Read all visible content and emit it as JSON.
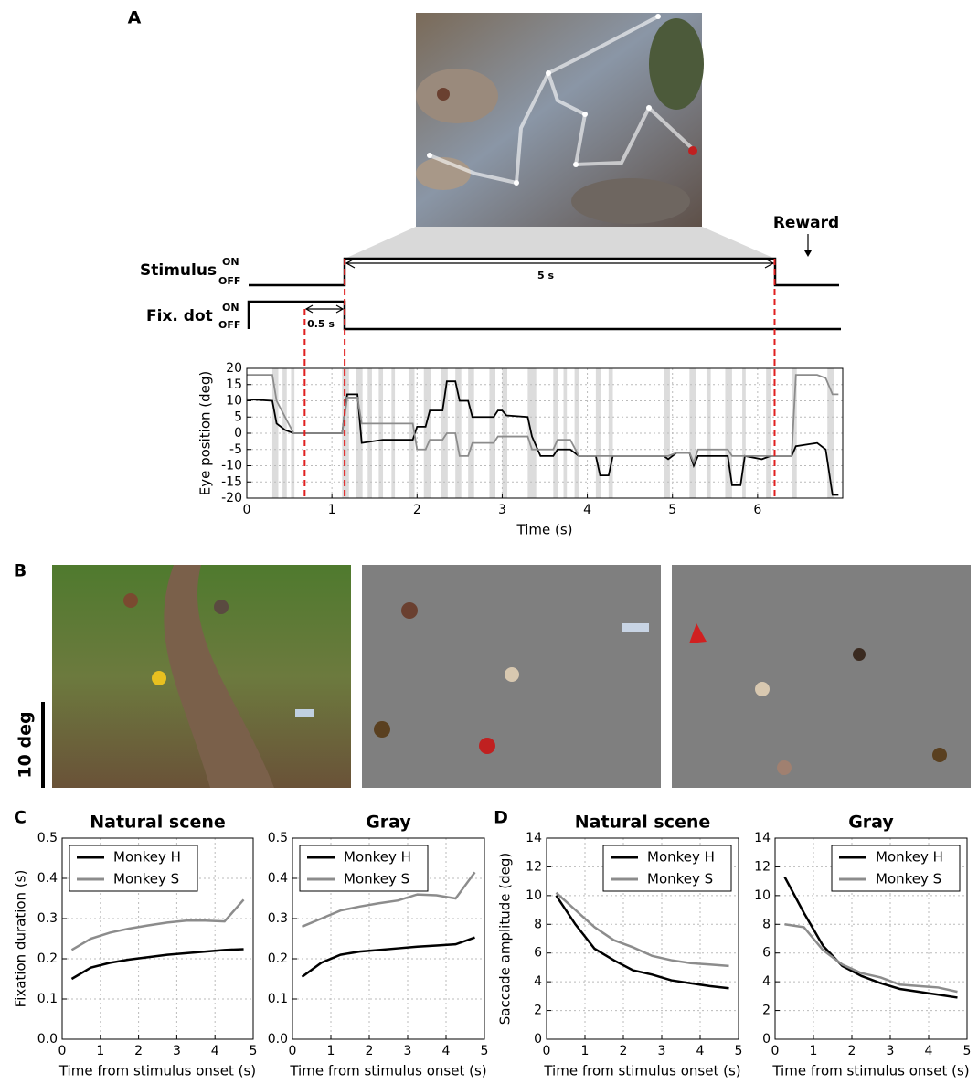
{
  "panel_labels": [
    "A",
    "B",
    "C",
    "D"
  ],
  "timing": {
    "stimulus": "Stimulus",
    "fix_dot": "Fix. dot",
    "on": "ON",
    "off": "OFF",
    "duration": "5 s",
    "delay": "0.5 s",
    "reward": "Reward"
  },
  "scale_bar": "10 deg",
  "chart_data": [
    {
      "type": "line",
      "xlabel": "Time (s)",
      "ylabel": "Eye position (deg)",
      "x": [
        0,
        0.3,
        0.35,
        0.45,
        0.55,
        1.12,
        1.18,
        1.3,
        1.35,
        1.6,
        1.95,
        2.0,
        2.1,
        2.15,
        2.3,
        2.35,
        2.45,
        2.5,
        2.6,
        2.65,
        2.9,
        2.95,
        3.0,
        3.05,
        3.3,
        3.35,
        3.45,
        3.6,
        3.65,
        3.8,
        3.9,
        4.1,
        4.15,
        4.25,
        4.3,
        4.9,
        4.95,
        5.05,
        5.2,
        5.25,
        5.3,
        5.65,
        5.7,
        5.8,
        5.85,
        6.05,
        6.15,
        6.4,
        6.45,
        6.7,
        6.8,
        6.88,
        6.95
      ],
      "series": [
        {
          "color": "#000000",
          "values": [
            10.5,
            10,
            3,
            1,
            0,
            0,
            12,
            12,
            -3,
            -2,
            -2,
            2,
            2,
            7,
            7,
            16,
            16,
            10,
            10,
            5,
            5,
            7,
            7,
            5.5,
            5,
            -1,
            -7,
            -7,
            -5,
            -5,
            -7,
            -7,
            -13,
            -13,
            -7,
            -7,
            -8,
            -6,
            -6,
            -10,
            -7,
            -7,
            -16,
            -16,
            -7,
            -8,
            -7,
            -7,
            -4,
            -3,
            -5,
            -19,
            -19
          ]
        },
        {
          "color": "#8c8c8c",
          "values": [
            18,
            18,
            10,
            5,
            0,
            0,
            11,
            11,
            3,
            3,
            3,
            -5,
            -5,
            -2,
            -2,
            0,
            0,
            -7,
            -7,
            -3,
            -3,
            -1,
            -1,
            -1,
            -1,
            -5,
            -5,
            -5,
            -2,
            -2,
            -7,
            -7,
            -7,
            -7,
            -7,
            -7,
            -7,
            -6,
            -6,
            -9,
            -5,
            -5,
            -7,
            -7,
            -7,
            -7,
            -7,
            -7,
            18,
            18,
            17,
            12,
            12
          ]
        }
      ],
      "xlim": [
        0,
        7
      ],
      "ylim": [
        -20,
        20
      ],
      "xticks": [
        0,
        1,
        2,
        3,
        4,
        5,
        6
      ],
      "yticks": [
        -20,
        -15,
        -10,
        -5,
        0,
        5,
        10,
        15,
        20
      ],
      "grid": true,
      "markers": [
        0.68,
        1.15,
        6.2
      ],
      "marker_color": "#e02020",
      "saccades": [
        [
          0.3,
          0.37
        ],
        [
          0.42,
          0.47
        ],
        [
          0.52,
          0.56
        ],
        [
          1.12,
          1.2
        ],
        [
          1.28,
          1.36
        ],
        [
          1.42,
          1.47
        ],
        [
          1.55,
          1.6
        ],
        [
          1.7,
          1.74
        ],
        [
          1.9,
          1.97
        ],
        [
          2.08,
          2.16
        ],
        [
          2.28,
          2.36
        ],
        [
          2.45,
          2.52
        ],
        [
          2.6,
          2.67
        ],
        [
          2.85,
          2.92
        ],
        [
          3.0,
          3.06
        ],
        [
          3.3,
          3.4
        ],
        [
          3.6,
          3.66
        ],
        [
          3.72,
          3.76
        ],
        [
          3.85,
          3.9
        ],
        [
          4.1,
          4.16
        ],
        [
          4.25,
          4.3
        ],
        [
          4.9,
          4.97
        ],
        [
          5.2,
          5.28
        ],
        [
          5.4,
          5.45
        ],
        [
          5.62,
          5.7
        ],
        [
          5.82,
          5.86
        ],
        [
          6.1,
          6.16
        ],
        [
          6.4,
          6.46
        ],
        [
          6.82,
          6.9
        ]
      ]
    },
    {
      "type": "line",
      "title": "Natural scene",
      "xlabel": "Time from stimulus onset (s)",
      "ylabel": "Fixation duration (s)",
      "x": [
        0.25,
        0.75,
        1.25,
        1.75,
        2.25,
        2.75,
        3.25,
        3.75,
        4.25,
        4.75
      ],
      "series": [
        {
          "name": "Monkey H",
          "color": "#000000",
          "values": [
            0.15,
            0.178,
            0.19,
            0.198,
            0.204,
            0.21,
            0.214,
            0.218,
            0.222,
            0.224
          ]
        },
        {
          "name": "Monkey S",
          "color": "#8c8c8c",
          "values": [
            0.222,
            0.25,
            0.265,
            0.275,
            0.283,
            0.29,
            0.295,
            0.295,
            0.293,
            0.347
          ]
        }
      ],
      "xlim": [
        0,
        5
      ],
      "ylim": [
        0,
        0.5
      ],
      "xticks": [
        0,
        1,
        2,
        3,
        4,
        5
      ],
      "yticks": [
        {
          "value": 0,
          "label": "0.0"
        },
        0.1,
        0.2,
        0.3,
        0.4,
        0.5
      ],
      "grid": true,
      "legend": "upper left"
    },
    {
      "type": "line",
      "title": "Gray",
      "xlabel": "Time from stimulus onset (s)",
      "x": [
        0.25,
        0.75,
        1.25,
        1.75,
        2.25,
        2.75,
        3.25,
        3.75,
        4.25,
        4.75
      ],
      "series": [
        {
          "name": "Monkey H",
          "color": "#000000",
          "values": [
            0.155,
            0.19,
            0.21,
            0.218,
            0.222,
            0.226,
            0.23,
            0.233,
            0.236,
            0.253
          ]
        },
        {
          "name": "Monkey S",
          "color": "#8c8c8c",
          "values": [
            0.28,
            0.3,
            0.32,
            0.33,
            0.338,
            0.345,
            0.36,
            0.358,
            0.35,
            0.415
          ]
        }
      ],
      "xlim": [
        0,
        5
      ],
      "ylim": [
        0,
        0.5
      ],
      "xticks": [
        0,
        1,
        2,
        3,
        4,
        5
      ],
      "yticks": [
        {
          "value": 0,
          "label": "0.0"
        },
        0.1,
        0.2,
        0.3,
        0.4,
        0.5
      ],
      "grid": true,
      "legend": "upper left"
    },
    {
      "type": "line",
      "title": "Natural scene",
      "xlabel": "Time from stimulus onset (s)",
      "ylabel": "Saccade amplitude (deg)",
      "x": [
        0.25,
        0.75,
        1.25,
        1.75,
        2.25,
        2.75,
        3.25,
        3.75,
        4.25,
        4.75
      ],
      "series": [
        {
          "name": "Monkey H",
          "color": "#000000",
          "values": [
            10,
            8,
            6.3,
            5.5,
            4.8,
            4.5,
            4.1,
            3.9,
            3.7,
            3.55
          ]
        },
        {
          "name": "Monkey S",
          "color": "#8c8c8c",
          "values": [
            10.2,
            9,
            7.8,
            6.9,
            6.4,
            5.8,
            5.5,
            5.3,
            5.2,
            5.1
          ]
        }
      ],
      "xlim": [
        0,
        5
      ],
      "ylim": [
        0,
        14
      ],
      "xticks": [
        0,
        1,
        2,
        3,
        4,
        5
      ],
      "yticks": [
        0,
        2,
        4,
        6,
        8,
        10,
        12,
        14
      ],
      "grid": true,
      "legend": "upper right"
    },
    {
      "type": "line",
      "title": "Gray",
      "xlabel": "Time from stimulus onset (s)",
      "x": [
        0.25,
        0.75,
        1.25,
        1.75,
        2.25,
        2.75,
        3.25,
        3.75,
        4.25,
        4.75
      ],
      "series": [
        {
          "name": "Monkey H",
          "color": "#000000",
          "values": [
            11.3,
            8.8,
            6.5,
            5.1,
            4.4,
            3.9,
            3.5,
            3.3,
            3.1,
            2.9
          ]
        },
        {
          "name": "Monkey S",
          "color": "#8c8c8c",
          "values": [
            8,
            7.8,
            6.2,
            5.2,
            4.6,
            4.3,
            3.8,
            3.7,
            3.6,
            3.3
          ]
        }
      ],
      "xlim": [
        0,
        5
      ],
      "ylim": [
        0,
        14
      ],
      "xticks": [
        0,
        1,
        2,
        3,
        4,
        5
      ],
      "yticks": [
        0,
        2,
        4,
        6,
        8,
        10,
        12,
        14
      ],
      "grid": true,
      "legend": "upper right"
    }
  ]
}
